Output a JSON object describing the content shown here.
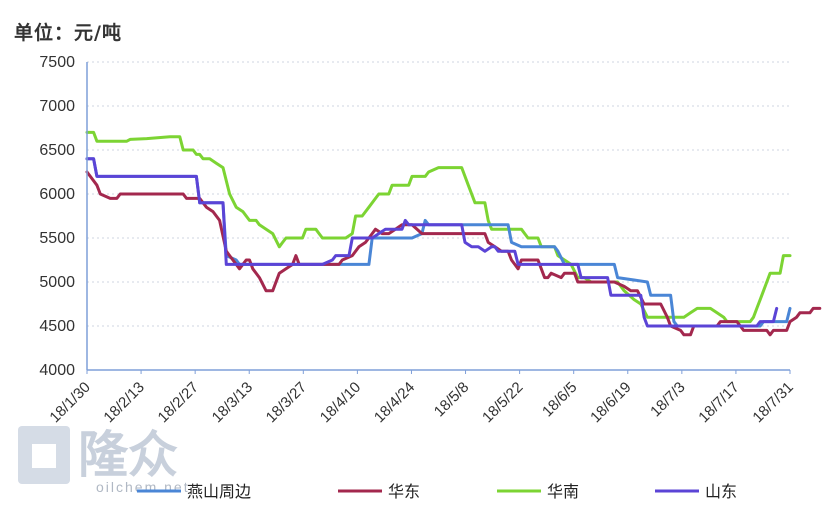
{
  "unit_label": "单位：元/吨",
  "watermark": {
    "brand": "隆众",
    "domain": "oilchem.net"
  },
  "colors": {
    "燕山周边": "#4a86d6",
    "华东": "#a3284e",
    "华南": "#7cd433",
    "山东": "#5b44d6",
    "axis": "#7f9fd8",
    "grid": "#cfd6e0"
  },
  "chart_data": {
    "type": "line",
    "title": "",
    "xlabel": "",
    "ylabel": "",
    "ylim": [
      4000,
      7500
    ],
    "yticks": [
      "7500",
      "7000",
      "6500",
      "6000",
      "5500",
      "5000",
      "4500",
      "4000"
    ],
    "xticks": [
      "18/1/30",
      "18/2/13",
      "18/2/27",
      "18/3/13",
      "18/3/27",
      "18/4/10",
      "18/4/24",
      "18/5/8",
      "18/5/22",
      "18/6/5",
      "18/6/19",
      "18/7/3",
      "18/7/17",
      "18/7/31"
    ],
    "grid": "horizontal dotted",
    "legend_position": "bottom",
    "series": [
      {
        "name": "燕山周边",
        "points": [
          [
            0,
            6400
          ],
          [
            2,
            6400
          ],
          [
            3,
            6200
          ],
          [
            33,
            6200
          ],
          [
            34,
            5900
          ],
          [
            41,
            5900
          ],
          [
            42,
            5300
          ],
          [
            45,
            5250
          ],
          [
            46,
            5200
          ],
          [
            85,
            5200
          ],
          [
            86,
            5500
          ],
          [
            98,
            5500
          ],
          [
            101,
            5550
          ],
          [
            102,
            5700
          ],
          [
            103,
            5650
          ],
          [
            127,
            5650
          ],
          [
            128,
            5450
          ],
          [
            131,
            5400
          ],
          [
            141,
            5400
          ],
          [
            142,
            5350
          ],
          [
            144,
            5200
          ],
          [
            159,
            5200
          ],
          [
            160,
            5050
          ],
          [
            169,
            5000
          ],
          [
            170,
            4850
          ],
          [
            176,
            4850
          ],
          [
            177,
            4550
          ],
          [
            178,
            4500
          ],
          [
            203,
            4500
          ],
          [
            204,
            4550
          ],
          [
            211,
            4550
          ],
          [
            212,
            4700
          ]
        ]
      },
      {
        "name": "华东",
        "points": [
          [
            0,
            6250
          ],
          [
            1,
            6200
          ],
          [
            3,
            6100
          ],
          [
            4,
            6000
          ],
          [
            7,
            5950
          ],
          [
            9,
            5950
          ],
          [
            10,
            6000
          ],
          [
            29,
            6000
          ],
          [
            30,
            5950
          ],
          [
            34,
            5950
          ],
          [
            36,
            5850
          ],
          [
            38,
            5800
          ],
          [
            40,
            5700
          ],
          [
            42,
            5350
          ],
          [
            43,
            5300
          ],
          [
            45,
            5200
          ],
          [
            46,
            5150
          ],
          [
            48,
            5250
          ],
          [
            49,
            5250
          ],
          [
            50,
            5150
          ],
          [
            52,
            5050
          ],
          [
            54,
            4900
          ],
          [
            56,
            4900
          ],
          [
            58,
            5100
          ],
          [
            60,
            5150
          ],
          [
            62,
            5200
          ],
          [
            63,
            5300
          ],
          [
            64,
            5200
          ],
          [
            76,
            5200
          ],
          [
            77,
            5250
          ],
          [
            80,
            5300
          ],
          [
            82,
            5400
          ],
          [
            84,
            5450
          ],
          [
            86,
            5550
          ],
          [
            87,
            5600
          ],
          [
            89,
            5550
          ],
          [
            91,
            5550
          ],
          [
            93,
            5600
          ],
          [
            95,
            5650
          ],
          [
            98,
            5650
          ],
          [
            101,
            5550
          ],
          [
            102,
            5550
          ],
          [
            120,
            5550
          ],
          [
            121,
            5450
          ],
          [
            123,
            5400
          ],
          [
            125,
            5350
          ],
          [
            127,
            5350
          ],
          [
            128,
            5250
          ],
          [
            129,
            5200
          ],
          [
            130,
            5150
          ],
          [
            131,
            5250
          ],
          [
            136,
            5250
          ],
          [
            137,
            5150
          ],
          [
            138,
            5050
          ],
          [
            139,
            5050
          ],
          [
            140,
            5100
          ],
          [
            143,
            5050
          ],
          [
            144,
            5100
          ],
          [
            147,
            5100
          ],
          [
            148,
            5000
          ],
          [
            159,
            5000
          ],
          [
            162,
            4950
          ],
          [
            164,
            4900
          ],
          [
            166,
            4900
          ],
          [
            168,
            4750
          ],
          [
            173,
            4750
          ],
          [
            175,
            4600
          ],
          [
            176,
            4500
          ],
          [
            179,
            4450
          ],
          [
            180,
            4400
          ],
          [
            182,
            4400
          ],
          [
            183,
            4500
          ],
          [
            190,
            4500
          ],
          [
            191,
            4550
          ],
          [
            193,
            4550
          ],
          [
            194,
            4550
          ],
          [
            196,
            4550
          ],
          [
            197,
            4500
          ],
          [
            198,
            4450
          ],
          [
            205,
            4450
          ],
          [
            206,
            4400
          ],
          [
            207,
            4450
          ],
          [
            211,
            4450
          ],
          [
            212,
            4550
          ],
          [
            214,
            4600
          ],
          [
            215,
            4650
          ],
          [
            218,
            4650
          ],
          [
            219,
            4700
          ],
          [
            221,
            4700
          ]
        ]
      },
      {
        "name": "华南",
        "points": [
          [
            0,
            6700
          ],
          [
            2,
            6700
          ],
          [
            3,
            6600
          ],
          [
            12,
            6600
          ],
          [
            13,
            6620
          ],
          [
            18,
            6630
          ],
          [
            25,
            6650
          ],
          [
            28,
            6650
          ],
          [
            29,
            6500
          ],
          [
            32,
            6500
          ],
          [
            33,
            6450
          ],
          [
            34,
            6450
          ],
          [
            35,
            6400
          ],
          [
            37,
            6400
          ],
          [
            39,
            6350
          ],
          [
            41,
            6300
          ],
          [
            43,
            6000
          ],
          [
            45,
            5850
          ],
          [
            47,
            5800
          ],
          [
            49,
            5700
          ],
          [
            51,
            5700
          ],
          [
            52,
            5650
          ],
          [
            54,
            5600
          ],
          [
            56,
            5550
          ],
          [
            58,
            5400
          ],
          [
            59,
            5450
          ],
          [
            60,
            5500
          ],
          [
            65,
            5500
          ],
          [
            66,
            5600
          ],
          [
            69,
            5600
          ],
          [
            70,
            5550
          ],
          [
            71,
            5500
          ],
          [
            78,
            5500
          ],
          [
            80,
            5550
          ],
          [
            81,
            5750
          ],
          [
            83,
            5750
          ],
          [
            85,
            5850
          ],
          [
            87,
            5950
          ],
          [
            88,
            6000
          ],
          [
            91,
            6000
          ],
          [
            92,
            6100
          ],
          [
            97,
            6100
          ],
          [
            98,
            6200
          ],
          [
            102,
            6200
          ],
          [
            103,
            6250
          ],
          [
            106,
            6300
          ],
          [
            113,
            6300
          ],
          [
            115,
            6100
          ],
          [
            117,
            5900
          ],
          [
            120,
            5900
          ],
          [
            121,
            5700
          ],
          [
            122,
            5600
          ],
          [
            124,
            5600
          ],
          [
            131,
            5600
          ],
          [
            132,
            5550
          ],
          [
            133,
            5500
          ],
          [
            136,
            5500
          ],
          [
            137,
            5400
          ],
          [
            141,
            5400
          ],
          [
            142,
            5300
          ],
          [
            146,
            5200
          ],
          [
            148,
            5050
          ],
          [
            150,
            5050
          ],
          [
            152,
            5000
          ],
          [
            160,
            5000
          ],
          [
            162,
            4900
          ],
          [
            165,
            4800
          ],
          [
            167,
            4750
          ],
          [
            169,
            4600
          ],
          [
            180,
            4600
          ],
          [
            182,
            4650
          ],
          [
            184,
            4700
          ],
          [
            188,
            4700
          ],
          [
            190,
            4650
          ],
          [
            192,
            4600
          ],
          [
            193,
            4550
          ],
          [
            200,
            4550
          ],
          [
            201,
            4600
          ],
          [
            202,
            4700
          ],
          [
            203,
            4800
          ],
          [
            204,
            4900
          ],
          [
            205,
            5000
          ],
          [
            206,
            5100
          ],
          [
            209,
            5100
          ],
          [
            210,
            5300
          ],
          [
            212,
            5300
          ]
        ]
      },
      {
        "name": "山东",
        "points": [
          [
            0,
            6400
          ],
          [
            2,
            6400
          ],
          [
            3,
            6200
          ],
          [
            33,
            6200
          ],
          [
            34,
            5900
          ],
          [
            41,
            5900
          ],
          [
            42,
            5200
          ],
          [
            71,
            5200
          ],
          [
            74,
            5250
          ],
          [
            75,
            5300
          ],
          [
            79,
            5300
          ],
          [
            80,
            5500
          ],
          [
            86,
            5500
          ],
          [
            88,
            5550
          ],
          [
            90,
            5600
          ],
          [
            95,
            5600
          ],
          [
            96,
            5700
          ],
          [
            97,
            5650
          ],
          [
            113,
            5650
          ],
          [
            114,
            5450
          ],
          [
            116,
            5400
          ],
          [
            118,
            5400
          ],
          [
            120,
            5350
          ],
          [
            122,
            5400
          ],
          [
            123,
            5400
          ],
          [
            124,
            5350
          ],
          [
            129,
            5350
          ],
          [
            130,
            5200
          ],
          [
            148,
            5200
          ],
          [
            149,
            5050
          ],
          [
            157,
            5050
          ],
          [
            158,
            4850
          ],
          [
            167,
            4850
          ],
          [
            168,
            4600
          ],
          [
            169,
            4500
          ],
          [
            202,
            4500
          ],
          [
            203,
            4550
          ],
          [
            207,
            4550
          ],
          [
            208,
            4700
          ]
        ]
      }
    ]
  }
}
